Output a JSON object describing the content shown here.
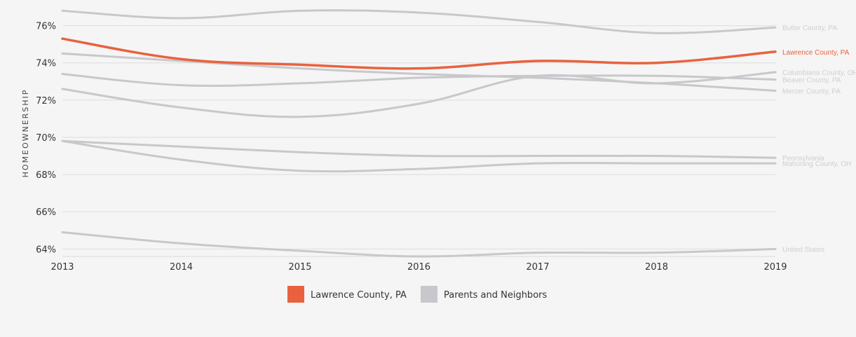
{
  "chart_data": {
    "type": "line",
    "ylabel": "HOMEOWNERSHIP",
    "xlabel": "",
    "x": [
      2013,
      2014,
      2015,
      2016,
      2017,
      2018,
      2019
    ],
    "x_tick_labels": [
      "2013",
      "2014",
      "2015",
      "2016",
      "2017",
      "2018",
      "2019"
    ],
    "ylim": [
      63.6,
      77
    ],
    "y_ticks": [
      64,
      66,
      68,
      70,
      72,
      74,
      76
    ],
    "y_tick_labels": [
      "64%",
      "66%",
      "68%",
      "70%",
      "72%",
      "74%",
      "76%"
    ],
    "grid": "horizontal",
    "legend_position": "bottom-center",
    "series": [
      {
        "name": "Butler County, PA",
        "group": "neighbor",
        "values": [
          76.8,
          76.4,
          76.8,
          76.7,
          76.2,
          75.6,
          75.9
        ]
      },
      {
        "name": "Lawrence County, PA",
        "group": "highlight",
        "values": [
          75.3,
          74.2,
          73.9,
          73.7,
          74.1,
          74.0,
          74.6
        ]
      },
      {
        "name": "Columbiana County, OH",
        "group": "neighbor",
        "values": [
          72.6,
          71.6,
          71.1,
          71.8,
          73.3,
          72.9,
          73.5
        ]
      },
      {
        "name": "Beaver County, PA",
        "group": "neighbor",
        "values": [
          73.4,
          72.8,
          72.9,
          73.2,
          73.3,
          73.3,
          73.1
        ]
      },
      {
        "name": "Mercer County, PA",
        "group": "neighbor",
        "values": [
          74.5,
          74.1,
          73.7,
          73.4,
          73.2,
          72.9,
          72.5
        ]
      },
      {
        "name": "Pennsylvania",
        "group": "neighbor",
        "values": [
          69.8,
          69.5,
          69.2,
          69.0,
          69.0,
          69.0,
          68.9
        ]
      },
      {
        "name": "Mahoning County, OH",
        "group": "neighbor",
        "values": [
          69.8,
          68.8,
          68.2,
          68.3,
          68.6,
          68.6,
          68.6
        ]
      },
      {
        "name": "United States",
        "group": "neighbor",
        "values": [
          64.9,
          64.3,
          63.9,
          63.6,
          63.8,
          63.8,
          64.0
        ]
      }
    ],
    "legend": [
      {
        "label": "Lawrence County, PA",
        "color": "#e8623f"
      },
      {
        "label": "Parents and Neighbors",
        "color": "#c8c8cc"
      }
    ],
    "colors": {
      "highlight": "#e8623f",
      "neighbor": "#c8c8cc",
      "neighbor_label": "#cfcfd3",
      "grid": "#dcdcdc"
    }
  }
}
